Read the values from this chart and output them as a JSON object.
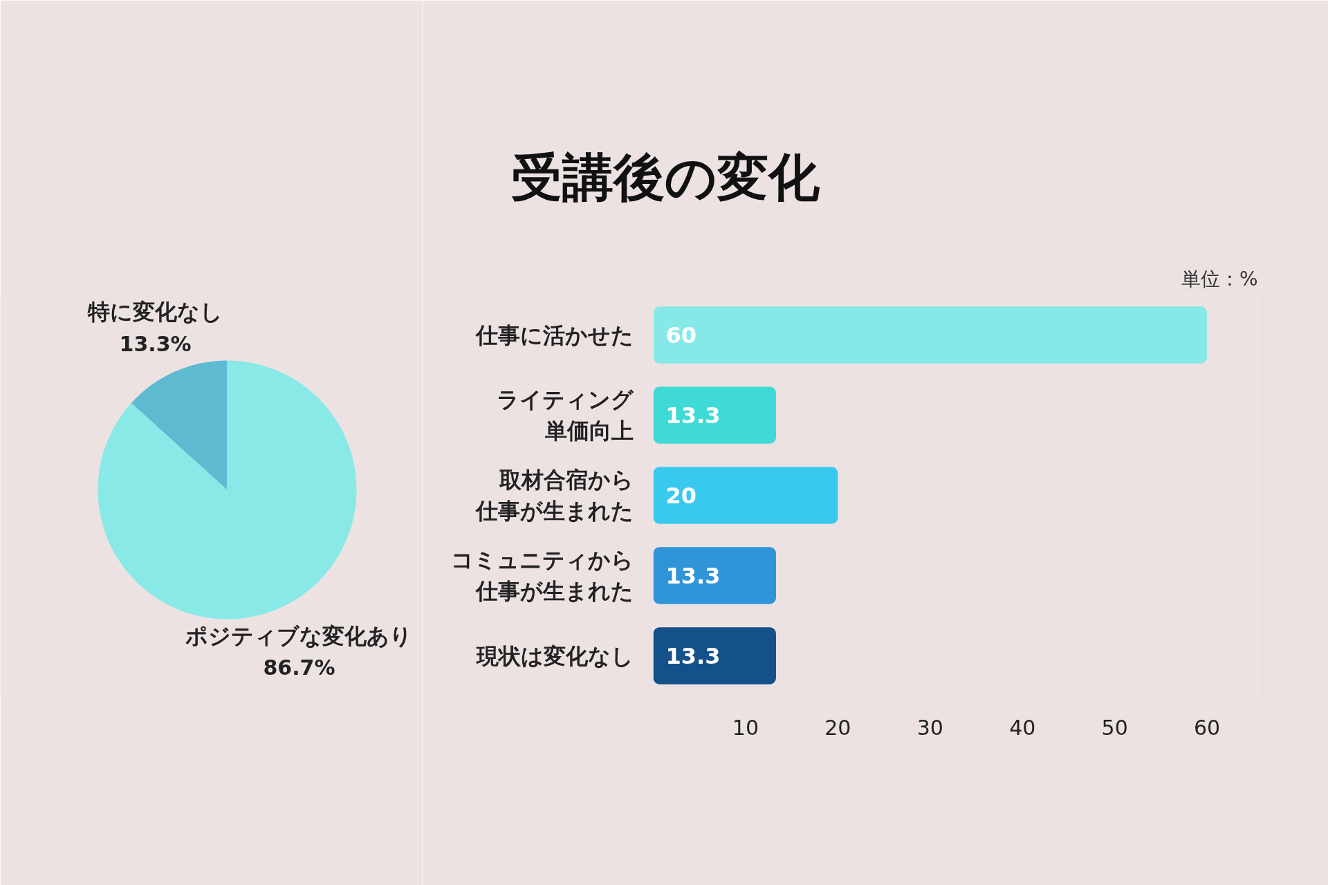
{
  "chart_data": [
    {
      "type": "pie",
      "categories": [
        "特に変化なし",
        "ポジティブな変化あり"
      ],
      "values": [
        13.3,
        86.7
      ],
      "colors": [
        "#5dbad1",
        "#88e9e7"
      ],
      "value_labels": [
        "13.3%",
        "86.7%"
      ]
    },
    {
      "type": "bar",
      "title": "受講後の変化",
      "orientation": "horizontal",
      "categories": [
        "仕事に活かせた",
        "ライティング単価向上",
        "取材合宿から仕事が生まれた",
        "コミュニティから仕事が生まれた",
        "現状は変化なし"
      ],
      "values": [
        60,
        13.3,
        20,
        13.3,
        13.3
      ],
      "colors": [
        "#87e9e7",
        "#3fdad5",
        "#3ac9ee",
        "#2f94d8",
        "#14508a"
      ],
      "xlim": [
        0,
        65.5
      ],
      "xticks": [
        10,
        20,
        30,
        40,
        50,
        60
      ],
      "data_labels": true,
      "annotations": [
        "単位：%"
      ]
    }
  ]
}
